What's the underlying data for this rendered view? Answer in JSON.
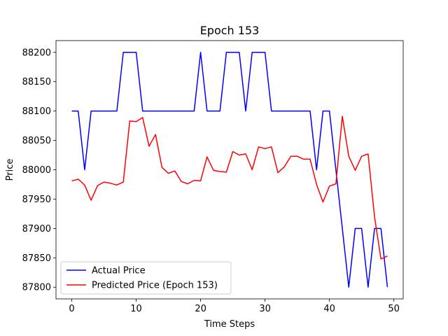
{
  "chart_data": {
    "type": "line",
    "title": "Epoch 153",
    "xlabel": "Time Steps",
    "ylabel": "Price",
    "xlim": [
      -2.45,
      51.45
    ],
    "ylim": [
      87780,
      88220
    ],
    "xticks": [
      0,
      10,
      20,
      30,
      40,
      50
    ],
    "yticks": [
      87800,
      87850,
      87900,
      87950,
      88000,
      88050,
      88100,
      88150,
      88200
    ],
    "grid": false,
    "legend_position": "lower-left",
    "x": [
      0,
      1,
      2,
      3,
      4,
      5,
      6,
      7,
      8,
      9,
      10,
      11,
      12,
      13,
      14,
      15,
      16,
      17,
      18,
      19,
      20,
      21,
      22,
      23,
      24,
      25,
      26,
      27,
      28,
      29,
      30,
      31,
      32,
      33,
      34,
      35,
      36,
      37,
      38,
      39,
      40,
      41,
      42,
      43,
      44,
      45,
      46,
      47,
      48,
      49
    ],
    "series": [
      {
        "name": "Actual Price",
        "color": "#0000ff",
        "values": [
          88100,
          88100,
          88000,
          88100,
          88100,
          88100,
          88100,
          88100,
          88200,
          88200,
          88200,
          88100,
          88100,
          88100,
          88100,
          88100,
          88100,
          88100,
          88100,
          88100,
          88200,
          88100,
          88100,
          88100,
          88200,
          88200,
          88200,
          88100,
          88200,
          88200,
          88200,
          88100,
          88100,
          88100,
          88100,
          88100,
          88100,
          88100,
          88000,
          88100,
          88100,
          88000,
          87900,
          87800,
          87900,
          87900,
          87800,
          87900,
          87900,
          87800
        ]
      },
      {
        "name": "Predicted Price (Epoch 153)",
        "color": "#ff0000",
        "values": [
          87981,
          87984,
          87974,
          87948,
          87973,
          87979,
          87977,
          87974,
          87979,
          88083,
          88082,
          88089,
          88040,
          88060,
          88004,
          87994,
          87998,
          87980,
          87976,
          87982,
          87981,
          88022,
          87999,
          87997,
          87996,
          88031,
          88025,
          88027,
          88000,
          88039,
          88036,
          88039,
          87995,
          88005,
          88023,
          88023,
          88018,
          88018,
          87975,
          87945,
          87972,
          87976,
          88091,
          88023,
          87999,
          88023,
          88027,
          87920,
          87848,
          87853
        ]
      }
    ]
  }
}
